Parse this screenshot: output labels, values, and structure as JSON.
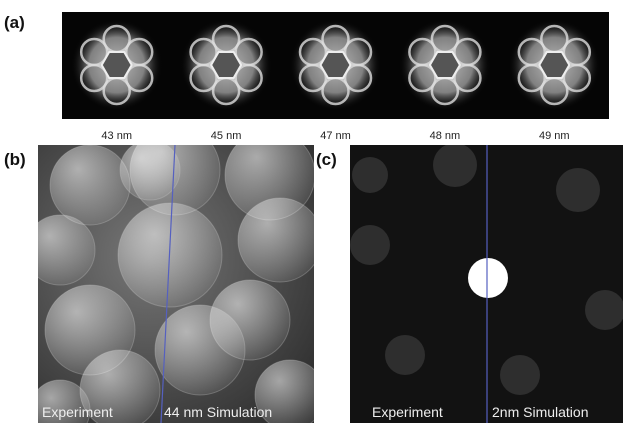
{
  "panel_a": {
    "label": "(a)",
    "thicknesses": [
      "43 nm",
      "45 nm",
      "47 nm",
      "48 nm",
      "49 nm"
    ]
  },
  "panel_b": {
    "label": "(b)",
    "left_caption": "Experiment",
    "right_caption": "44 nm Simulation"
  },
  "panel_c": {
    "label": "(c)",
    "left_caption": "Experiment",
    "right_caption": "2nm Simulation"
  }
}
